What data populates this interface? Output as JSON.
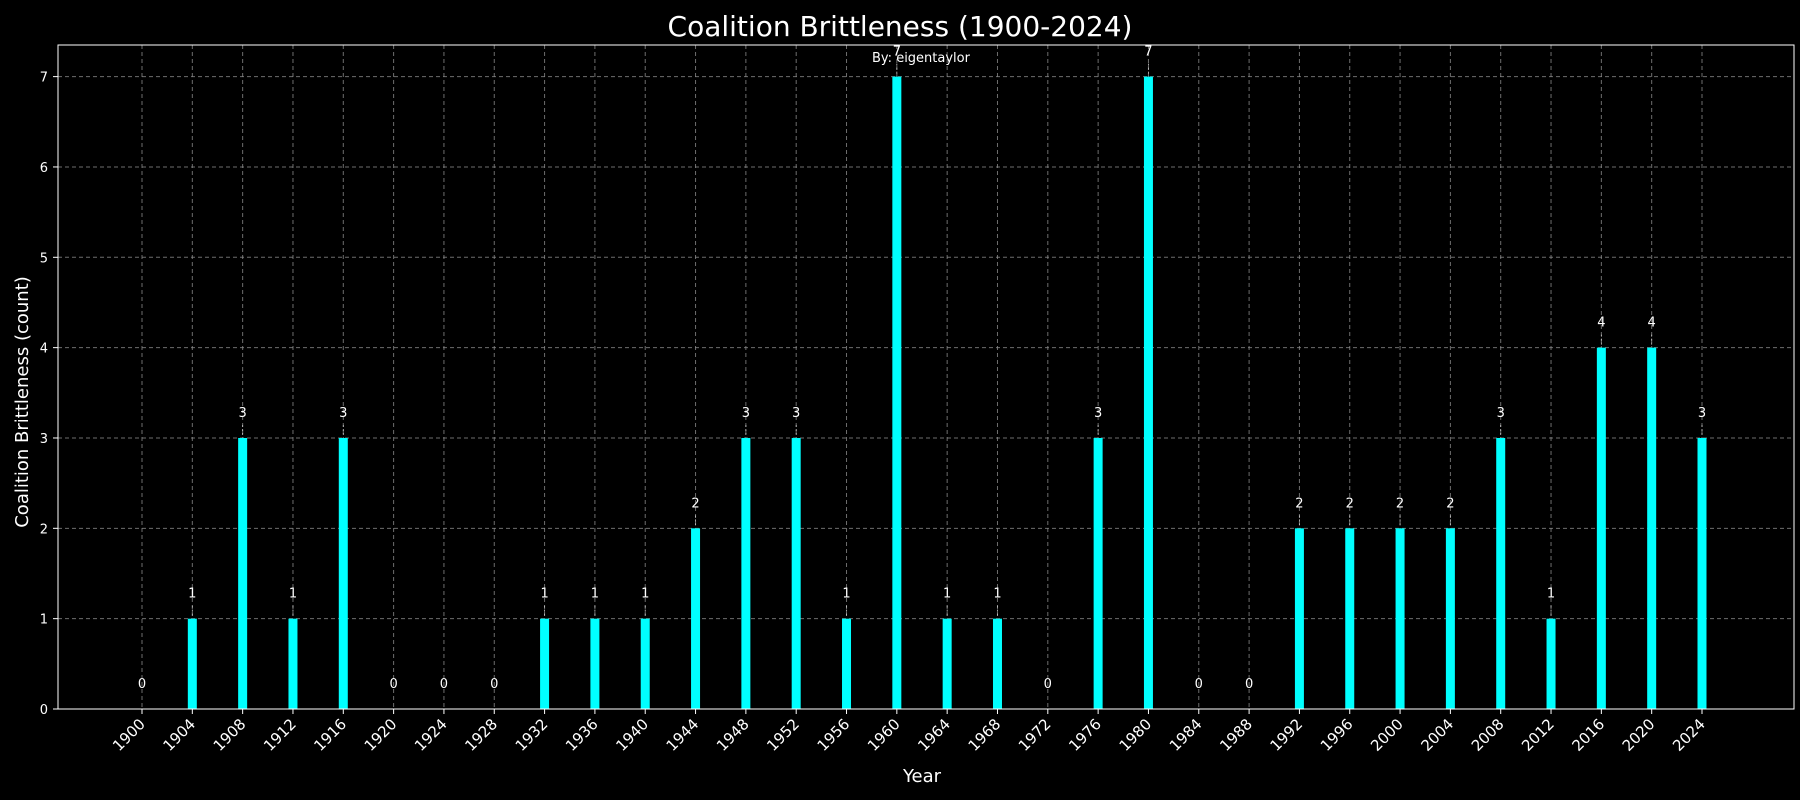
{
  "colors": {
    "background": "#000000",
    "bar": "#00ffff",
    "text": "#ffffff",
    "grid": "#8a8a8a",
    "axis": "#ffffff"
  },
  "chart_data": {
    "type": "bar",
    "title": "Coalition Brittleness (1900-2024)",
    "subtitle": "By: eigentaylor",
    "xlabel": "Year",
    "ylabel": "Coalition Brittleness (count)",
    "ylim": [
      0,
      7.35
    ],
    "yticks": [
      0,
      1,
      2,
      3,
      4,
      5,
      6,
      7
    ],
    "grid": true,
    "grid_style": "dashed",
    "categories": [
      "1900",
      "1904",
      "1908",
      "1912",
      "1916",
      "1920",
      "1924",
      "1928",
      "1932",
      "1936",
      "1940",
      "1944",
      "1948",
      "1952",
      "1956",
      "1960",
      "1964",
      "1968",
      "1972",
      "1976",
      "1980",
      "1984",
      "1988",
      "1992",
      "1996",
      "2000",
      "2004",
      "2008",
      "2012",
      "2016",
      "2020",
      "2024"
    ],
    "values": [
      0,
      1,
      3,
      1,
      3,
      0,
      0,
      0,
      1,
      1,
      1,
      2,
      3,
      3,
      1,
      7,
      1,
      1,
      0,
      3,
      7,
      0,
      0,
      2,
      2,
      2,
      2,
      3,
      1,
      4,
      4,
      3
    ],
    "data_labels": [
      "0",
      "1",
      "3",
      "1",
      "3",
      "0",
      "0",
      "0",
      "1",
      "1",
      "1",
      "2",
      "3",
      "3",
      "1",
      "7",
      "1",
      "1",
      "0",
      "3",
      "7",
      "0",
      "0",
      "2",
      "2",
      "2",
      "2",
      "3",
      "1",
      "4",
      "4",
      "3"
    ]
  }
}
